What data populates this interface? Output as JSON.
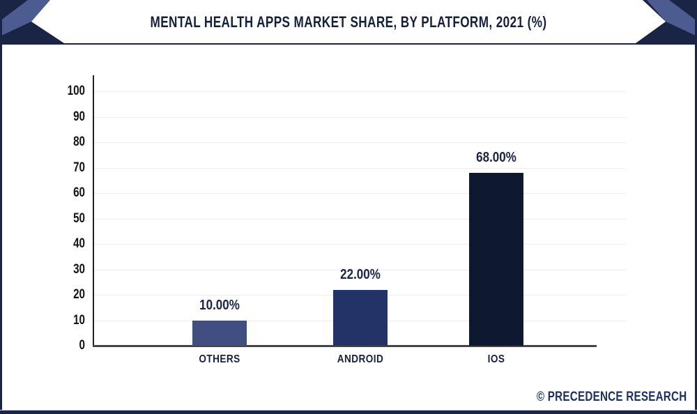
{
  "header": {
    "title": "MENTAL HEALTH APPS MARKET SHARE, BY PLATFORM, 2021 (%)"
  },
  "footer": {
    "credit": "© PRECEDENCE RESEARCH"
  },
  "colors": {
    "header_navy": "#1a2445",
    "header_slate": "#4d5c90",
    "title_text": "#14203c",
    "grid": "#ededed",
    "axis": "#454545"
  },
  "chart_data": {
    "type": "bar",
    "title": "MENTAL HEALTH APPS MARKET SHARE, BY PLATFORM, 2021 (%)",
    "categories": [
      "OTHERS",
      "ANDROID",
      "IOS"
    ],
    "values": [
      10,
      22,
      68
    ],
    "value_labels": [
      "10.00%",
      "22.00%",
      "68.00%"
    ],
    "bar_colors": [
      "#414e82",
      "#233267",
      "#0e1831"
    ],
    "xlabel": "",
    "ylabel": "",
    "ylim": [
      0,
      100
    ],
    "ytick_step": 10,
    "ytick_labels": [
      "0",
      "10",
      "20",
      "30",
      "40",
      "50",
      "60",
      "70",
      "80",
      "90",
      "100"
    ],
    "grid": true,
    "legend": false,
    "source_credit": "© PRECEDENCE RESEARCH"
  }
}
